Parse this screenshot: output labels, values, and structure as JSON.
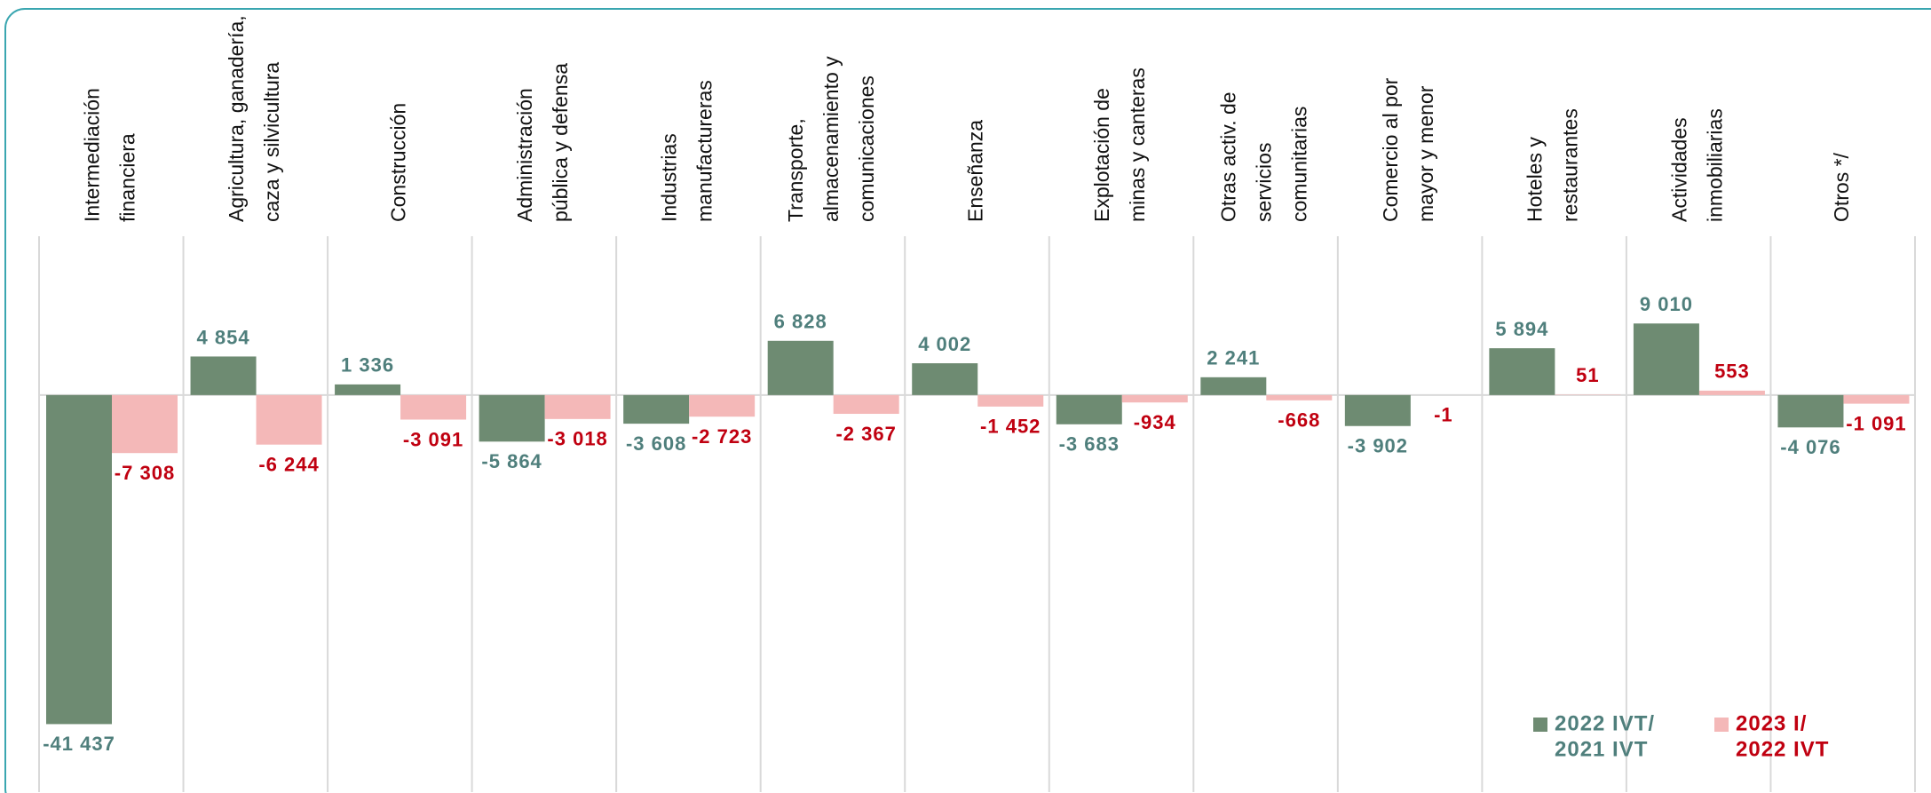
{
  "chart_data": {
    "type": "bar",
    "categories": [
      [
        "Intermediación",
        "financiera"
      ],
      [
        "Agricultura, ganadería,",
        "caza y silvicultura"
      ],
      [
        "Construcción"
      ],
      [
        "Administración",
        "pública y defensa"
      ],
      [
        "Industrias",
        "manufactureras"
      ],
      [
        "Transporte,",
        "almacenamiento y",
        "comunicaciones"
      ],
      [
        "Enseñanza"
      ],
      [
        "Explotación de",
        "minas y canteras"
      ],
      [
        "Otras activ. de",
        "servicios",
        "comunitarias"
      ],
      [
        "Comercio al por",
        "mayor y menor"
      ],
      [
        "Hoteles y",
        "restaurantes"
      ],
      [
        "Actividades",
        "inmobiliarias"
      ],
      [
        "Otros */"
      ]
    ],
    "series": [
      {
        "name": [
          "2022 IVT/",
          "2021 IVT"
        ],
        "color": "#6e8b72",
        "label_color": "#4f7f7c",
        "values": [
          -41437,
          4854,
          1336,
          -5864,
          -3608,
          6828,
          4002,
          -3683,
          2241,
          -3902,
          5894,
          9010,
          -4076
        ],
        "value_labels": [
          "-41 437",
          "4 854",
          "1 336",
          "-5 864",
          "-3 608",
          "6 828",
          "4 002",
          "-3 683",
          "2 241",
          "-3 902",
          "5 894",
          "9 010",
          "-4 076"
        ]
      },
      {
        "name": [
          "2023 I/",
          "2022 IVT"
        ],
        "color": "#f4b8b8",
        "label_color": "#c00010",
        "values": [
          -7308,
          -6244,
          -3091,
          -3018,
          -2723,
          -2367,
          -1452,
          -934,
          -668,
          -1,
          51,
          553,
          -1091
        ],
        "value_labels": [
          "-7 308",
          "-6 244",
          "-3 091",
          "-3 018",
          "-2 723",
          "-2 367",
          "-1 452",
          "-934",
          "-668",
          "-1",
          "51",
          "553",
          "-1 091"
        ]
      }
    ],
    "ylim": [
      -50000,
      20000
    ],
    "legend": "lower right"
  }
}
